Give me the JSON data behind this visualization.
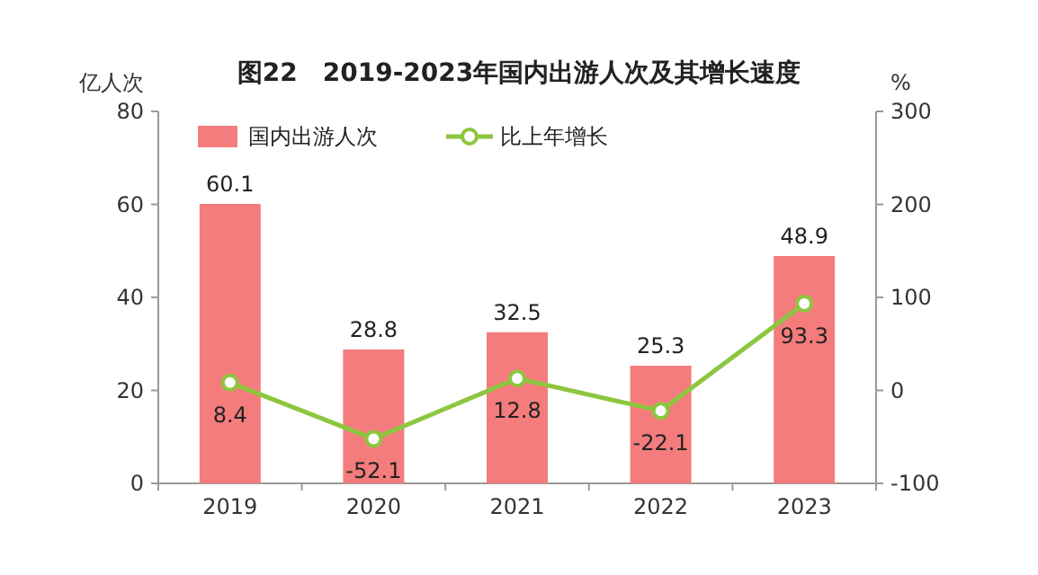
{
  "chart_data": {
    "type": "bar",
    "title": "图22　2019-2023年国内出游人次及其增长速度",
    "ylabel": "亿人次",
    "y2label": "%",
    "categories": [
      "2019",
      "2020",
      "2021",
      "2022",
      "2023"
    ],
    "series": [
      {
        "name": "国内出游人次",
        "color": "#f47c7c",
        "values": [
          60.1,
          28.8,
          32.5,
          25.3,
          48.9
        ]
      },
      {
        "name": "比上年增长",
        "type": "line",
        "axis": "y2",
        "color": "#8dc63f",
        "marker": "circle",
        "values": [
          8.4,
          -52.1,
          12.8,
          -22.1,
          93.3
        ]
      }
    ],
    "ylim": [
      0,
      80
    ],
    "yticks": [
      0,
      20,
      40,
      60,
      80
    ],
    "y2lim": [
      -100,
      300
    ],
    "y2ticks": [
      -100,
      0,
      100,
      200,
      300
    ],
    "legend": "top left",
    "data_labels": true
  }
}
